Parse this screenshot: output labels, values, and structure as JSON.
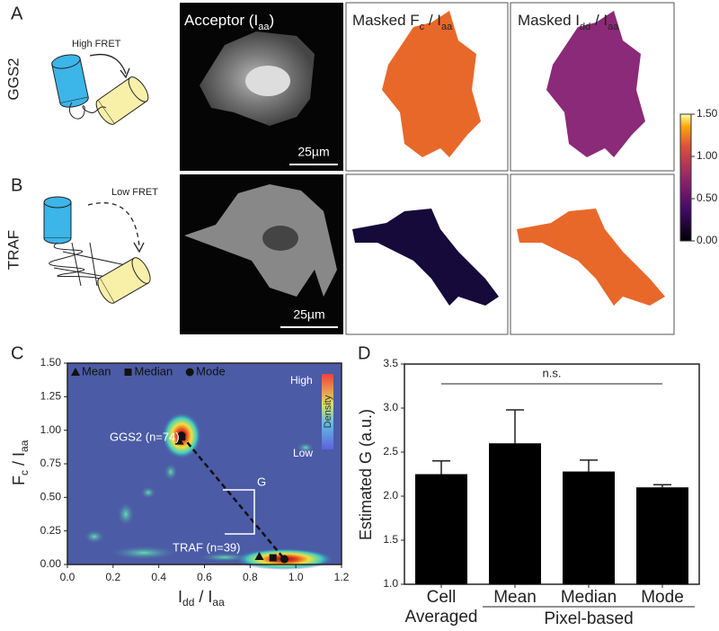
{
  "panel_labels": {
    "a": "A",
    "b": "B",
    "c": "C",
    "d": "D"
  },
  "rows": [
    {
      "label": "GGS2",
      "fret": "High FRET"
    },
    {
      "label": "TRAF",
      "fret": "Low FRET"
    }
  ],
  "image_titles": [
    [
      "Acceptor (I",
      "aa",
      ")"
    ],
    [
      "Masked F",
      "c",
      " / I",
      "aa"
    ],
    [
      "Masked I",
      "dd",
      " / I",
      "aa"
    ]
  ],
  "scale_bar": "25µm",
  "colorbar": {
    "lim": [
      0,
      1.5
    ],
    "ticks": [
      {
        "value": 0,
        "label": "0.00"
      },
      {
        "value": 0.5,
        "label": "0.50"
      },
      {
        "value": 1,
        "label": "1.00"
      },
      {
        "value": 1.5,
        "label": "1.50"
      }
    ]
  },
  "chart_data": [
    {
      "type": "scatter",
      "xlabel": [
        "I",
        "dd",
        " / I",
        "aa"
      ],
      "ylabel": [
        "F",
        "c",
        " / I",
        "aa"
      ],
      "xlim": [
        0,
        1.2
      ],
      "ylim": [
        0,
        1.5
      ],
      "xticks": [
        {
          "value": 0,
          "label": "0.0"
        },
        0.2,
        0.4,
        0.6,
        0.8,
        {
          "value": 1,
          "label": "1.0"
        },
        1.2
      ],
      "yticks": [
        {
          "value": 0,
          "label": "0.00"
        },
        0.25,
        {
          "value": 0.5,
          "label": "0.50"
        },
        0.75,
        {
          "value": 1,
          "label": "1.00"
        },
        1.25,
        {
          "value": 1.5,
          "label": "1.50"
        }
      ],
      "series": [
        {
          "name": "Mean",
          "marker": "triangle",
          "color": "#111111",
          "x": [
            0.49,
            0.84
          ],
          "values": [
            0.92,
            0.06
          ]
        },
        {
          "name": "Median",
          "marker": "square",
          "color": "#111111",
          "x": [
            0.5,
            0.9
          ],
          "values": [
            0.95,
            0.05
          ]
        },
        {
          "name": "Mode",
          "marker": "circle",
          "color": "#111111",
          "x": [
            0.5,
            0.95
          ],
          "values": [
            0.96,
            0.04
          ]
        }
      ],
      "annotations": [
        "GGS2 (n=74)",
        "TRAF (n=39)",
        "G"
      ],
      "density_legend": {
        "title": "Density",
        "high": "High",
        "low": "Low"
      },
      "background": "#4b5ba6"
    },
    {
      "type": "bar",
      "ylabel": "Estimated G (a.u.)",
      "categories": [
        "Cell\nAveraged",
        "Mean",
        "Median",
        "Mode"
      ],
      "values": [
        2.25,
        2.6,
        2.28,
        2.1
      ],
      "errors": [
        0.15,
        0.38,
        0.13,
        0.03
      ],
      "color": "#000000",
      "ylim": [
        1,
        3.5
      ],
      "yticks": [
        {
          "value": 1,
          "label": "1.0"
        },
        1.5,
        {
          "value": 2,
          "label": "2.0"
        },
        2.5,
        {
          "value": 3,
          "label": "3.0"
        },
        3.5
      ],
      "group_label": "Pixel-based",
      "annotation": "n.s."
    }
  ]
}
